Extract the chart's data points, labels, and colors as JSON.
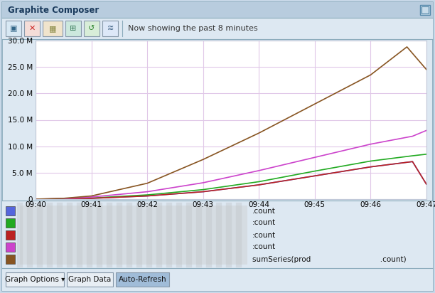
{
  "title": "Graphite Composer",
  "toolbar_text": "Now showing the past 8 minutes",
  "x_ticks": [
    "09:40",
    "09:41",
    "09:42",
    "09:43",
    "09:44",
    "09:45",
    "09:46",
    "09:47"
  ],
  "y_max": 30000000,
  "y_min": 0,
  "outer_bg": "#c8d8e8",
  "window_bg": "#dde8f2",
  "titlebar_bg": "#b8ccde",
  "toolbar_bg": "#dde8f2",
  "plot_bg": "#ffffff",
  "legend_bg": "#dde8f2",
  "grid_color": "#e0c8e8",
  "spine_color": "#c0c8d8",
  "series": [
    {
      "label": ".count",
      "color": "#5566dd",
      "x": [
        0,
        0.5,
        1,
        2,
        3,
        4,
        5,
        6,
        6.75,
        7
      ],
      "y": [
        0,
        50000,
        150000,
        600000,
        1400000,
        2700000,
        4400000,
        6100000,
        7100000,
        2800000
      ]
    },
    {
      "label": ":count",
      "color": "#22aa22",
      "x": [
        0,
        0.5,
        1,
        2,
        3,
        4,
        5,
        6,
        6.75,
        7
      ],
      "y": [
        0,
        60000,
        200000,
        800000,
        1800000,
        3300000,
        5300000,
        7200000,
        8200000,
        8500000
      ]
    },
    {
      "label": ":count",
      "color": "#bb2222",
      "x": [
        0,
        0.5,
        1,
        2,
        3,
        4,
        5,
        6,
        6.75,
        7
      ],
      "y": [
        0,
        50000,
        150000,
        600000,
        1400000,
        2700000,
        4400000,
        6100000,
        7100000,
        2800000
      ]
    },
    {
      "label": ":count",
      "color": "#cc44cc",
      "x": [
        0,
        0.5,
        1,
        2,
        3,
        4,
        5,
        6,
        6.75,
        7
      ],
      "y": [
        0,
        100000,
        400000,
        1400000,
        3100000,
        5400000,
        7900000,
        10400000,
        11900000,
        13000000
      ]
    },
    {
      "label": "sumSeries(prod                              .count)",
      "color": "#885522",
      "x": [
        0,
        0.5,
        1,
        2,
        3,
        4,
        5,
        6,
        6.65,
        7
      ],
      "y": [
        0,
        150000,
        600000,
        3000000,
        7500000,
        12500000,
        18000000,
        23500000,
        28800000,
        24500000
      ]
    }
  ],
  "legend_entries": [
    {
      "color": "#5566dd",
      "label": ".count"
    },
    {
      "color": "#22aa22",
      "label": ":count"
    },
    {
      "color": "#bb2222",
      "label": ":count"
    },
    {
      "color": "#cc44cc",
      "label": ":count"
    },
    {
      "color": "#885522",
      "label": "sumSeries(prod                              .count)"
    }
  ],
  "btn_labels": [
    "Graph Options ▾",
    "Graph Data",
    "Auto-Refresh"
  ],
  "btn_colors": [
    "#e8eef4",
    "#e8eef4",
    "#a0bcd8"
  ]
}
